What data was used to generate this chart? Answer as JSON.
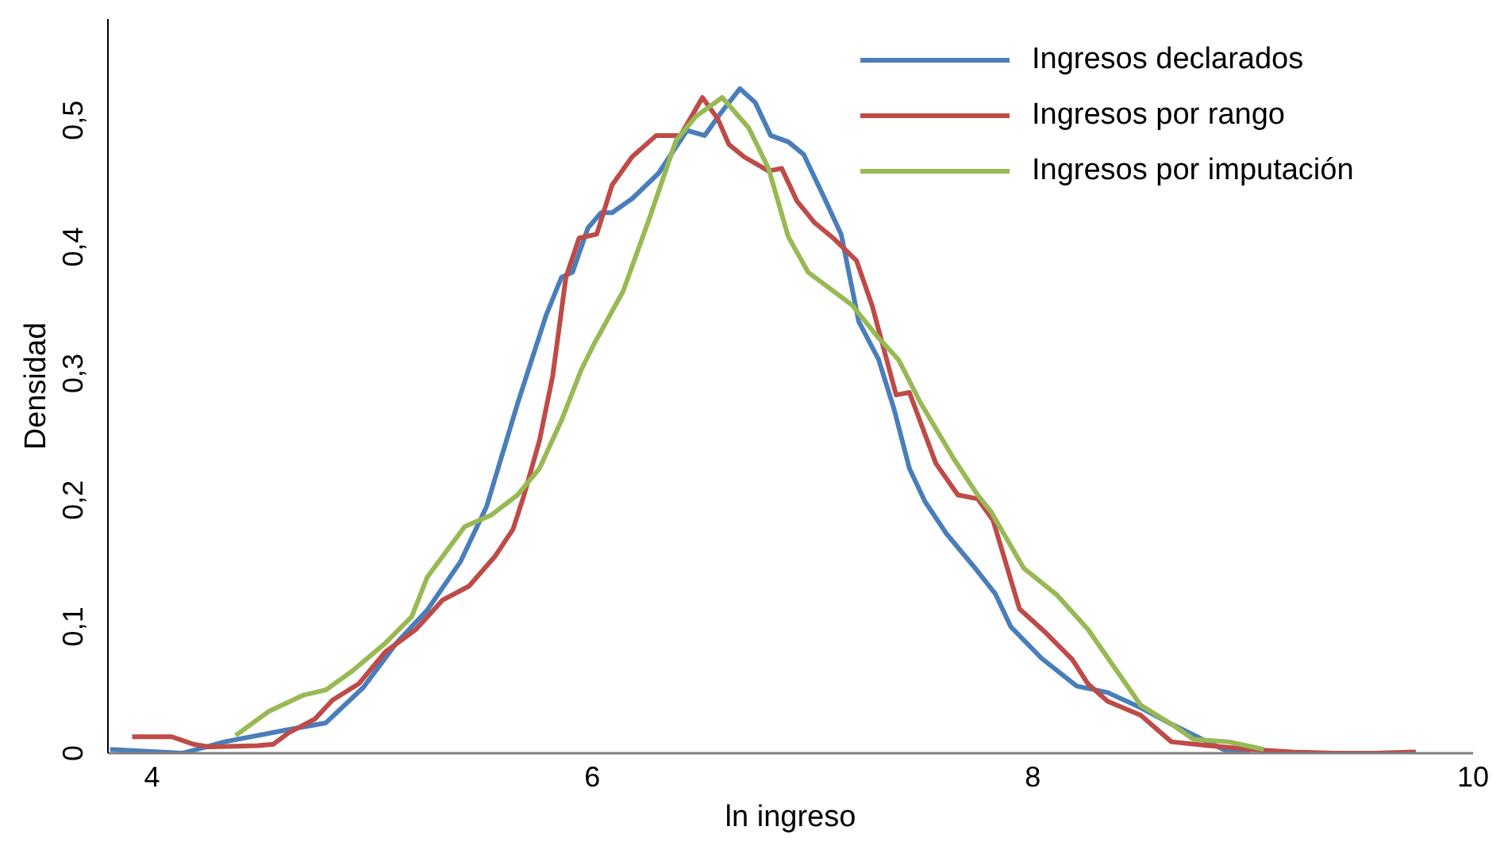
{
  "chart_data": {
    "type": "line",
    "xlabel": "ln ingreso",
    "ylabel": "Densidad",
    "xlim": [
      3.8,
      10
    ],
    "xticks": [
      4,
      6,
      8,
      10
    ],
    "ylim": [
      0,
      0.58
    ],
    "yticks": [
      0,
      {
        "value": 0.1,
        "label": "0,1"
      },
      {
        "value": 0.2,
        "label": "0,2"
      },
      {
        "value": 0.3,
        "label": "0,3"
      },
      {
        "value": 0.4,
        "label": "0,4"
      },
      {
        "value": 0.5,
        "label": "0,5"
      }
    ],
    "grid": false,
    "legend": "top right",
    "marker": "none",
    "line_style": "solid",
    "series": [
      {
        "name": "Ingresos declarados",
        "color": "#4a7ebb",
        "x": [
          3.81,
          4.14,
          4.33,
          4.6,
          4.79,
          4.96,
          5.11,
          5.25,
          5.4,
          5.52,
          5.66,
          5.79,
          5.86,
          5.91,
          5.98,
          6.04,
          6.09,
          6.18,
          6.3,
          6.43,
          6.51,
          6.58,
          6.67,
          6.74,
          6.81,
          6.89,
          6.96,
          7.05,
          7.13,
          7.21,
          7.3,
          7.37,
          7.44,
          7.51,
          7.61,
          7.73,
          7.83,
          7.9,
          8.04,
          8.2,
          8.34,
          8.49,
          8.63,
          8.77,
          8.89,
          8.99
        ],
        "values": [
          0.003,
          0,
          0.009,
          0.018,
          0.024,
          0.052,
          0.087,
          0.113,
          0.151,
          0.195,
          0.276,
          0.346,
          0.376,
          0.38,
          0.415,
          0.427,
          0.427,
          0.438,
          0.458,
          0.492,
          0.488,
          0.505,
          0.525,
          0.514,
          0.488,
          0.483,
          0.473,
          0.44,
          0.41,
          0.341,
          0.311,
          0.272,
          0.225,
          0.199,
          0.173,
          0.148,
          0.126,
          0.1,
          0.075,
          0.053,
          0.048,
          0.036,
          0.023,
          0.011,
          0.001,
          0
        ]
      },
      {
        "name": "Ingresos por rango",
        "color": "#be4b48",
        "x": [
          3.91,
          4.09,
          4.19,
          4.26,
          4.48,
          4.55,
          4.62,
          4.74,
          4.82,
          4.94,
          5.06,
          5.2,
          5.32,
          5.44,
          5.56,
          5.64,
          5.69,
          5.76,
          5.82,
          5.88,
          5.94,
          6.02,
          6.09,
          6.18,
          6.29,
          6.4,
          6.5,
          6.57,
          6.62,
          6.69,
          6.8,
          6.86,
          6.93,
          7.01,
          7.1,
          7.2,
          7.27,
          7.38,
          7.44,
          7.56,
          7.66,
          7.75,
          7.82,
          7.94,
          8.06,
          8.18,
          8.25,
          8.34,
          8.49,
          8.63,
          8.8,
          8.99,
          9.18,
          9.37,
          9.56,
          9.74
        ],
        "values": [
          0.013,
          0.013,
          0.007,
          0.005,
          0.006,
          0.007,
          0.016,
          0.027,
          0.042,
          0.055,
          0.08,
          0.098,
          0.121,
          0.132,
          0.156,
          0.177,
          0.204,
          0.247,
          0.298,
          0.376,
          0.407,
          0.41,
          0.449,
          0.471,
          0.488,
          0.488,
          0.518,
          0.501,
          0.481,
          0.471,
          0.46,
          0.462,
          0.436,
          0.419,
          0.406,
          0.389,
          0.354,
          0.283,
          0.285,
          0.229,
          0.204,
          0.201,
          0.184,
          0.114,
          0.095,
          0.074,
          0.055,
          0.041,
          0.03,
          0.009,
          0.006,
          0.003,
          0.001,
          0,
          0,
          0.001
        ]
      },
      {
        "name": "Ingresos por imputación",
        "color": "#98b954",
        "x": [
          4.38,
          4.53,
          4.69,
          4.79,
          4.91,
          5.06,
          5.18,
          5.25,
          5.42,
          5.54,
          5.66,
          5.76,
          5.86,
          5.95,
          6.01,
          6.14,
          6.26,
          6.38,
          6.47,
          6.59,
          6.71,
          6.8,
          6.89,
          6.98,
          7.08,
          7.18,
          7.3,
          7.39,
          7.49,
          7.64,
          7.75,
          7.81,
          7.96,
          8.11,
          8.25,
          8.49,
          8.63,
          8.73,
          8.89,
          9.05
        ],
        "values": [
          0.014,
          0.033,
          0.046,
          0.05,
          0.065,
          0.087,
          0.108,
          0.139,
          0.179,
          0.188,
          0.204,
          0.225,
          0.263,
          0.303,
          0.324,
          0.365,
          0.423,
          0.484,
          0.503,
          0.518,
          0.494,
          0.462,
          0.408,
          0.38,
          0.367,
          0.354,
          0.328,
          0.311,
          0.277,
          0.233,
          0.204,
          0.191,
          0.146,
          0.125,
          0.098,
          0.038,
          0.023,
          0.011,
          0.009,
          0.003
        ]
      }
    ]
  }
}
